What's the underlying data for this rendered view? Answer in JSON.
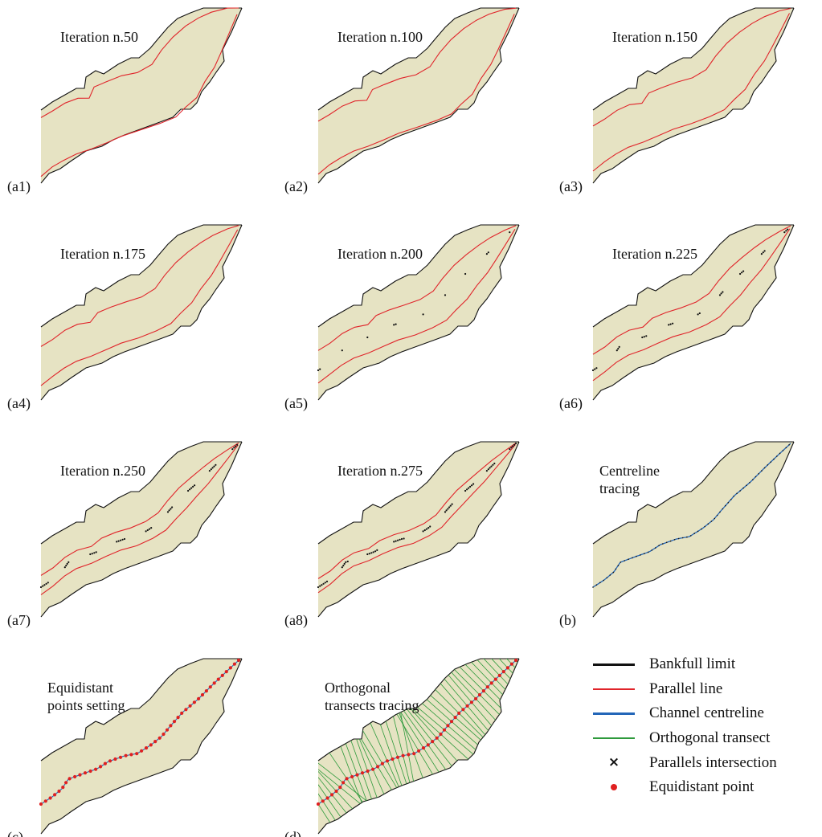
{
  "colors": {
    "channel_fill": "#e6e3c3",
    "bankfull": "#111111",
    "parallel": "#e0242a",
    "centreline": "#2366b8",
    "transect": "#2e9a3c",
    "intersection": "#111111",
    "equidistant": "#e02020"
  },
  "panels": [
    {
      "id": "a1",
      "label": "(a1)",
      "title": "Iteration n.50",
      "stage": "iteration",
      "progress": 0.01
    },
    {
      "id": "a2",
      "label": "(a2)",
      "title": "Iteration n.100",
      "stage": "iteration",
      "progress": 0.12
    },
    {
      "id": "a3",
      "label": "(a3)",
      "title": "Iteration n.150",
      "stage": "iteration",
      "progress": 0.27
    },
    {
      "id": "a4",
      "label": "(a4)",
      "title": "Iteration n.175",
      "stage": "iteration",
      "progress": 0.38
    },
    {
      "id": "a5",
      "label": "(a5)",
      "title": "Iteration n.200",
      "stage": "iteration",
      "progress": 0.5
    },
    {
      "id": "a6",
      "label": "(a6)",
      "title": "Iteration n.225",
      "stage": "iteration",
      "progress": 0.62
    },
    {
      "id": "a7",
      "label": "(a7)",
      "title": "Iteration n.250",
      "stage": "iteration",
      "progress": 0.75
    },
    {
      "id": "a8",
      "label": "(a8)",
      "title": "Iteration n.275",
      "stage": "iteration",
      "progress": 0.85
    },
    {
      "id": "b",
      "label": "(b)",
      "title_lines": [
        "Centreline",
        "tracing"
      ],
      "stage": "centreline"
    },
    {
      "id": "c",
      "label": "(c)",
      "title_lines": [
        "Equidistant",
        "points setting"
      ],
      "stage": "points"
    },
    {
      "id": "d",
      "label": "(d)",
      "title_lines": [
        "Orthogonal",
        "transects tracing"
      ],
      "stage": "transects"
    }
  ],
  "legend": [
    {
      "symbol": "line",
      "color": "#111111",
      "label": "Bankfull limit"
    },
    {
      "symbol": "line",
      "color": "#e0242a",
      "label": "Parallel line"
    },
    {
      "symbol": "line",
      "color": "#2366b8",
      "label": "Channel centreline"
    },
    {
      "symbol": "line",
      "color": "#2e9a3c",
      "label": "Orthogonal transect"
    },
    {
      "symbol": "cross",
      "color": "#111111",
      "label": "Parallels intersection"
    },
    {
      "symbol": "dot",
      "color": "#e02020",
      "label": "Equidistant point"
    }
  ]
}
